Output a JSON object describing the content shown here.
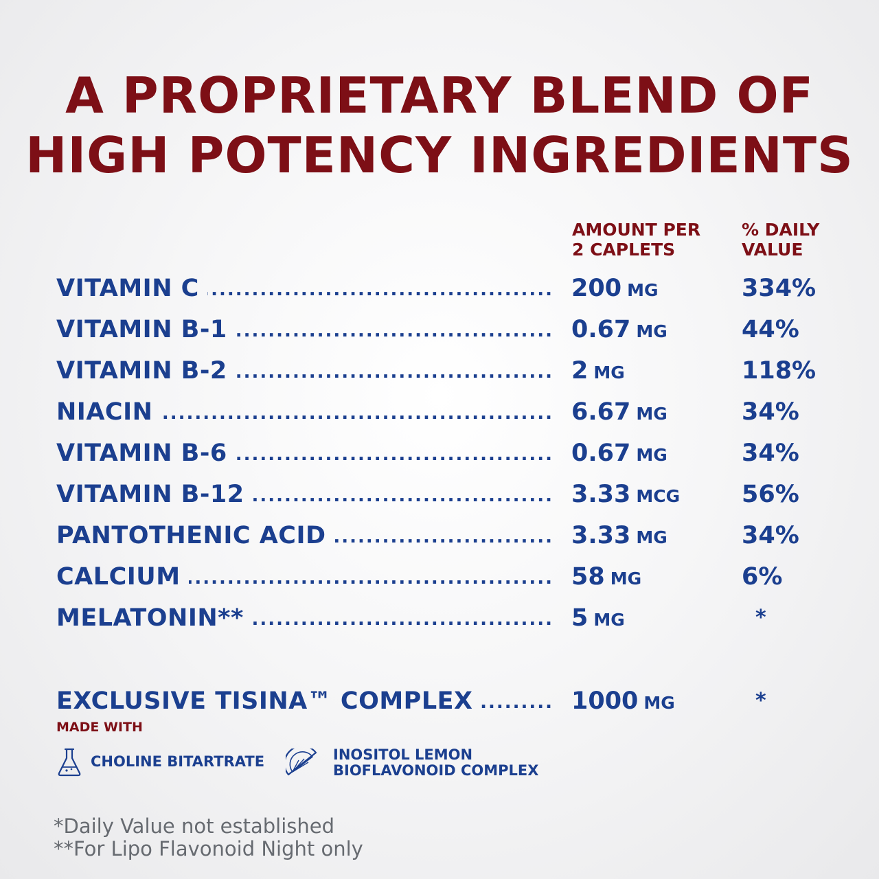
{
  "title": {
    "line1": "A PROPRIETARY BLEND OF",
    "line2": "HIGH POTENCY INGREDIENTS"
  },
  "columns": {
    "amount_line1": "AMOUNT PER",
    "amount_line2": "2 CAPLETS",
    "dv_line1": "% DAILY",
    "dv_line2": "VALUE"
  },
  "rows": [
    {
      "name": "VITAMIN C",
      "amount": "200",
      "unit": "MG",
      "dv": "334%"
    },
    {
      "name": "VITAMIN B-1",
      "amount": "0.67",
      "unit": "MG",
      "dv": "44%"
    },
    {
      "name": "VITAMIN B-2",
      "amount": "2",
      "unit": "MG",
      "dv": "118%"
    },
    {
      "name": "NIACIN",
      "amount": "6.67",
      "unit": "MG",
      "dv": "34%"
    },
    {
      "name": "VITAMIN B-6",
      "amount": "0.67",
      "unit": "MG",
      "dv": "34%"
    },
    {
      "name": "VITAMIN B-12",
      "amount": "3.33",
      "unit": "MCG",
      "dv": "56%"
    },
    {
      "name": "PANTOTHENIC ACID",
      "amount": "3.33",
      "unit": "MG",
      "dv": "34%"
    },
    {
      "name": "CALCIUM",
      "amount": "58",
      "unit": "MG",
      "dv": "6%"
    },
    {
      "name": "MELATONIN**",
      "amount": "5",
      "unit": "MG",
      "dv": "*"
    }
  ],
  "complex": {
    "name": "EXCLUSIVE TISINA™ COMPLEX",
    "amount": "1000",
    "unit": "MG",
    "dv": "*",
    "made_with": "MADE WITH",
    "feature1": "CHOLINE BITARTRATE",
    "feature1_icon": "flask-icon",
    "feature2_line1": "INOSITOL LEMON",
    "feature2_line2": "BIOFLAVONOID COMPLEX",
    "feature2_icon": "lemon-slice-icon"
  },
  "footnotes": {
    "line1": "*Daily Value not established",
    "line2": "**For Lipo Flavonoid Night only"
  },
  "colors": {
    "title_red": "#7d0f16",
    "text_blue": "#1b3f8f",
    "footnote_gray": "#666a70"
  }
}
